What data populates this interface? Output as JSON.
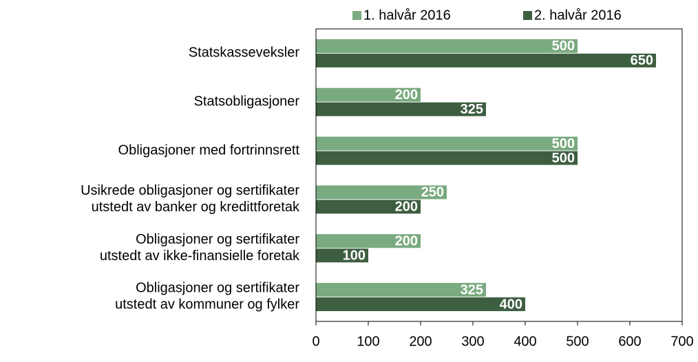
{
  "chart_data": {
    "type": "hbar",
    "categories": [
      "Statskasseveksler",
      "Statsobligasjoner",
      "Obligasjoner med fortrinnsrett",
      "Usikrede obligasjoner og sertifikater\nutstedt av banker og kredittforetak",
      "Obligasjoner og sertifikater\nutstedt av ikke-finansielle foretak",
      "Obligasjoner og sertifikater\nutstedt av kommuner og fylker"
    ],
    "series": [
      {
        "name": "1. halvår 2016",
        "color": "#7aaa7f",
        "values": [
          500,
          200,
          500,
          250,
          200,
          325
        ]
      },
      {
        "name": "2. halvår 2016",
        "color": "#3d5e40",
        "values": [
          650,
          325,
          500,
          200,
          100,
          400
        ]
      }
    ],
    "xlim": [
      0,
      700
    ],
    "xticks": [
      0,
      100,
      200,
      300,
      400,
      500,
      600,
      700
    ],
    "legend": "top"
  }
}
